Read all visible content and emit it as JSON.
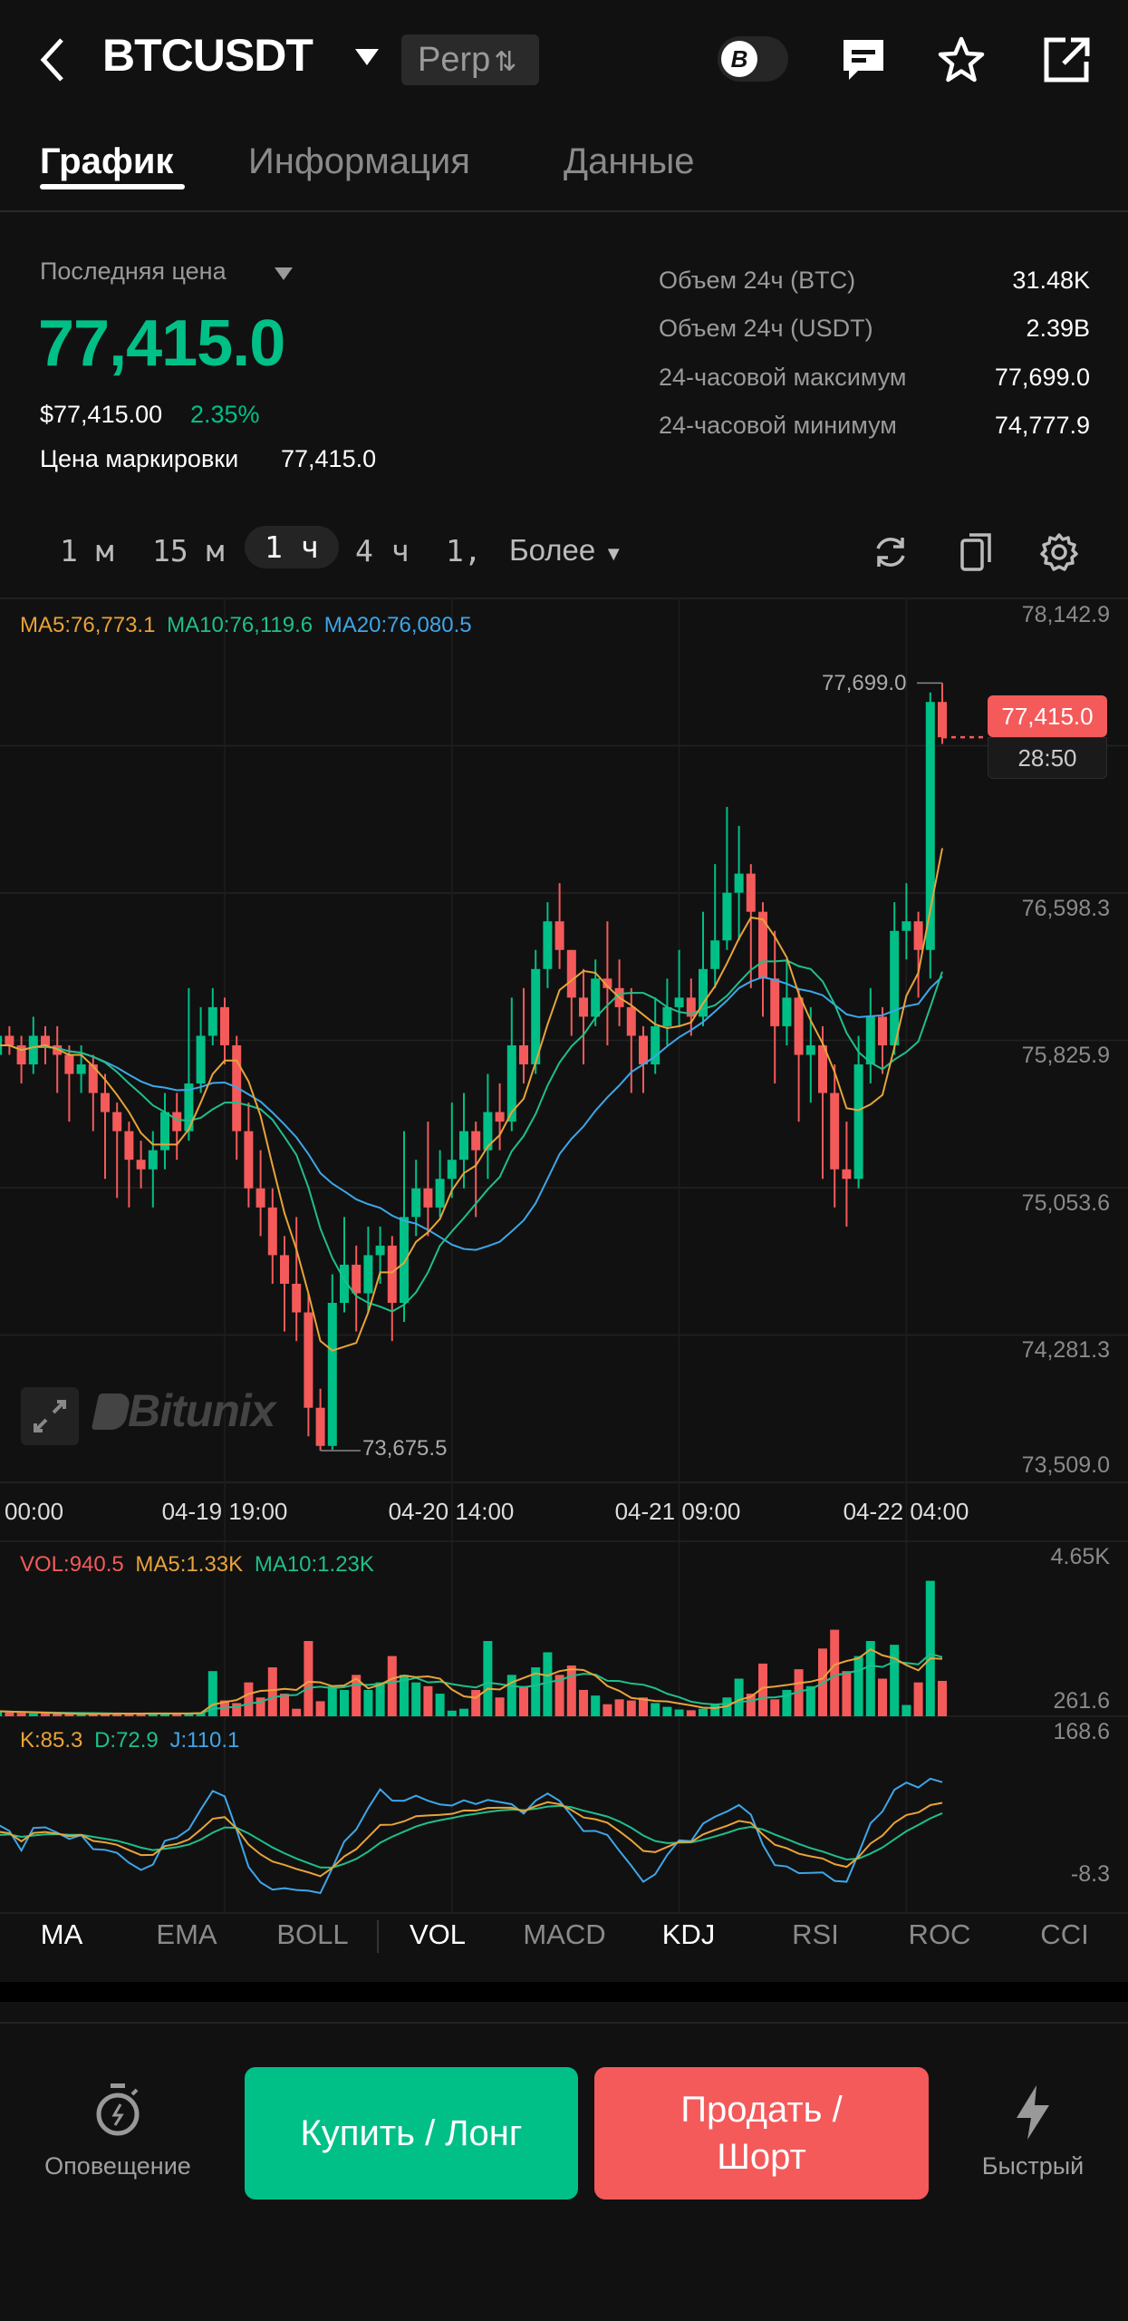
{
  "header": {
    "symbol": "BTCUSDT",
    "badge": "Perp",
    "badge_icon": "swap-arrows-icon"
  },
  "tabs": [
    {
      "label": "График",
      "active": true
    },
    {
      "label": "Информация"
    },
    {
      "label": "Данные"
    }
  ],
  "ticker": {
    "last_price_label": "Последняя цена",
    "last_price": "77,415.0",
    "usd_price": "$77,415.00",
    "change": "2.35%",
    "mark_label": "Цена маркировки",
    "mark_price": "77,415.0",
    "stats": [
      {
        "label": "Объем 24ч (BTC)",
        "value": "31.48K"
      },
      {
        "label": "Объем 24ч (USDT)",
        "value": "2.39B"
      },
      {
        "label": "24-часовой максимум",
        "value": "77,699.0"
      },
      {
        "label": "24-часовой минимум",
        "value": "74,777.9"
      }
    ]
  },
  "timeframes": {
    "items": [
      "1 м",
      "15 м",
      "1 ч",
      "4 ч",
      "1,"
    ],
    "active": "1 ч",
    "more": "Более"
  },
  "colors": {
    "up": "#00c087",
    "down": "#f45a5a",
    "ma5": "#e8a33a",
    "ma10": "#1fbf8a",
    "ma20": "#3ea6e8",
    "bg": "#111111"
  },
  "chart_data": {
    "type": "candlestick",
    "legend": {
      "ma5": "MA5:76,773.1",
      "ma10": "MA10:76,119.6",
      "ma20": "MA20:76,080.5"
    },
    "y_ticks": [
      "78,142.9",
      "76,598.3",
      "75,825.9",
      "75,053.6",
      "74,281.3",
      "73,509.0"
    ],
    "y_tick_values": [
      78142.9,
      77370.6,
      76598.3,
      75825.9,
      75053.6,
      74281.3,
      73509.0
    ],
    "ylim": [
      73509.0,
      78142.9
    ],
    "x_ticks": [
      {
        "index": 1,
        "label": "00:00"
      },
      {
        "index": 20,
        "label": "04-19 19:00"
      },
      {
        "index": 39,
        "label": "04-20 14:00"
      },
      {
        "index": 58,
        "label": "04-21 09:00"
      },
      {
        "index": 77,
        "label": "04-22 04:00"
      }
    ],
    "high_label": "77,699.0",
    "low_label": "73,675.5",
    "current_price": "77,415.0",
    "countdown": "28:50",
    "watermark": "Bitunix",
    "close": [
      75750,
      75850,
      75800,
      75700,
      75850,
      75800,
      75750,
      75650,
      75700,
      75550,
      75450,
      75350,
      75200,
      75150,
      75250,
      75450,
      75350,
      75600,
      75850,
      76000,
      75800,
      75350,
      75050,
      74950,
      74700,
      74550,
      74400,
      73900,
      73700,
      74450,
      74650,
      74500,
      74700,
      74750,
      74450,
      74900,
      75050,
      74950,
      75100,
      75200,
      75350,
      75250,
      75450,
      75400,
      75800,
      75700,
      76200,
      76450,
      76300,
      76050,
      75950,
      76150,
      76100,
      76000,
      75850,
      75700,
      75900,
      76000,
      76050,
      75950,
      76200,
      76350,
      76600,
      76700,
      76500,
      76150,
      75900,
      76050,
      75750,
      75800,
      75550,
      75150,
      75100,
      75700,
      75950,
      75800,
      76400,
      76450,
      76300,
      77600,
      77415
    ],
    "open_first": 75700,
    "high": [
      75850,
      75950,
      75900,
      75850,
      75950,
      75900,
      75900,
      75800,
      75800,
      75750,
      75650,
      75500,
      75400,
      75300,
      75350,
      75550,
      75550,
      76100,
      76000,
      76100,
      76050,
      75850,
      75500,
      75250,
      75050,
      74800,
      74900,
      74500,
      74000,
      74600,
      74900,
      74750,
      74850,
      74850,
      74800,
      75350,
      75200,
      75400,
      75250,
      75500,
      75550,
      75400,
      75650,
      75600,
      76050,
      76100,
      76300,
      76550,
      76650,
      76300,
      76200,
      76250,
      76450,
      76250,
      76100,
      75900,
      76050,
      76150,
      76300,
      76150,
      76500,
      76750,
      77050,
      76950,
      76750,
      76550,
      76400,
      76250,
      76100,
      76000,
      75900,
      75700,
      75400,
      75850,
      76100,
      76000,
      76550,
      76650,
      76500,
      77650,
      77699
    ],
    "low": [
      75650,
      75700,
      75750,
      75600,
      75650,
      75700,
      75550,
      75400,
      75550,
      75350,
      75100,
      75000,
      74950,
      75050,
      74950,
      75150,
      75200,
      75300,
      75550,
      75800,
      75700,
      75200,
      74950,
      74800,
      74550,
      74300,
      74250,
      73750,
      73675.5,
      73680,
      74400,
      74300,
      74400,
      74550,
      74250,
      74350,
      74800,
      74800,
      74900,
      75000,
      75050,
      74900,
      75100,
      75250,
      75350,
      75600,
      75650,
      76100,
      76200,
      75850,
      75700,
      75900,
      75800,
      75900,
      75550,
      75550,
      75650,
      75800,
      75900,
      75850,
      75900,
      76100,
      76300,
      76350,
      76100,
      75950,
      75600,
      75800,
      75400,
      75500,
      75100,
      74950,
      74850,
      75050,
      75600,
      75650,
      75750,
      76250,
      76050,
      76150,
      77380
    ],
    "volume": {
      "legend": {
        "vol": "VOL:940.5",
        "ma5": "MA5:1.33K",
        "ma10": "MA10:1.23K"
      },
      "y_ticks": [
        "4.65K",
        "261.6"
      ],
      "ylim": [
        0,
        4650
      ],
      "values": [
        150,
        120,
        100,
        90,
        80,
        70,
        60,
        60,
        50,
        60,
        80,
        90,
        70,
        60,
        80,
        70,
        90,
        80,
        100,
        1200,
        420,
        350,
        900,
        500,
        1300,
        600,
        200,
        2000,
        400,
        800,
        700,
        1100,
        700,
        900,
        1600,
        1100,
        900,
        800,
        600,
        150,
        200,
        700,
        2000,
        500,
        1100,
        800,
        1300,
        1700,
        1100,
        1350,
        700,
        550,
        320,
        450,
        420,
        500,
        350,
        250,
        180,
        160,
        200,
        300,
        500,
        1000,
        600,
        1400,
        450,
        700,
        1250,
        800,
        1800,
        2300,
        1200,
        1600,
        2000,
        1000,
        1900,
        300,
        900,
        3600,
        940.5
      ]
    },
    "kdj": {
      "legend": {
        "k": "K:85.3",
        "d": "D:72.9",
        "j": "J:110.1"
      },
      "y_ticks": [
        "168.6",
        "-8.3"
      ],
      "ylim": [
        -8.3,
        168.6
      ]
    }
  },
  "indicators": [
    {
      "label": "MA",
      "active": true
    },
    {
      "label": "EMA"
    },
    {
      "label": "BOLL"
    },
    {
      "label": "VOL",
      "active": true
    },
    {
      "label": "MACD"
    },
    {
      "label": "KDJ",
      "active": true
    },
    {
      "label": "RSI"
    },
    {
      "label": "ROC"
    },
    {
      "label": "CCI"
    }
  ],
  "bottom": {
    "alert_label": "Оповещение",
    "buy_label": "Купить / Лонг",
    "sell_label": "Продать / Шорт",
    "quick_label": "Быстрый"
  }
}
